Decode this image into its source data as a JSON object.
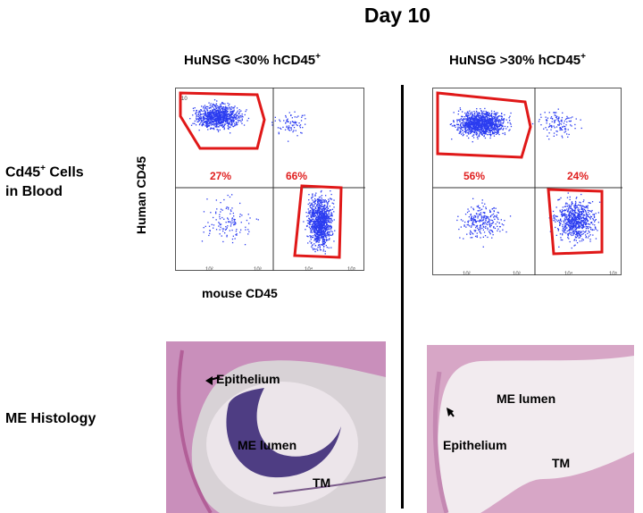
{
  "title": "Day 10",
  "columns": [
    {
      "heading_main": "HuNSG <30% hCD45",
      "heading_sup": "+"
    },
    {
      "heading_main": "HuNSG >30% hCD45",
      "heading_sup": "+"
    }
  ],
  "rows": {
    "blood_label_line1_main": "Cd45",
    "blood_label_line1_sup": "+",
    "blood_label_line1_rest": " Cells",
    "blood_label_line2": "in Blood",
    "histology_label": "ME Histology"
  },
  "axes": {
    "y_label": "Human CD45",
    "x_label": "mouse CD45"
  },
  "plots": [
    {
      "top_left_pct": "27%",
      "bottom_right_pct": "66%"
    },
    {
      "top_left_pct": "56%",
      "bottom_right_pct": "24%"
    }
  ],
  "histology": [
    {
      "epithelium": "Epithelium",
      "lumen": "ME lumen",
      "tm": "TM"
    },
    {
      "epithelium": "Epithelium",
      "lumen": "ME lumen",
      "tm": "TM"
    }
  ],
  "colors": {
    "gate": "#e01818",
    "dots": "#2b3cf0",
    "tissue_bg": "#e9dde6",
    "tissue_stain": "#c97fb4",
    "cells": "#3d2a78"
  }
}
